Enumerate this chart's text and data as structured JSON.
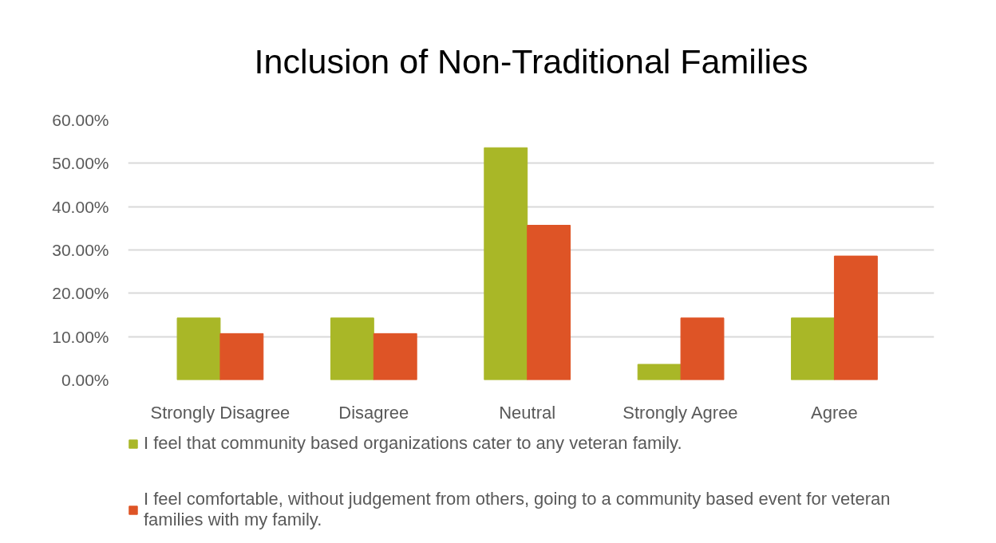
{
  "chart_data": {
    "type": "bar",
    "title": "Inclusion of Non-Traditional Families",
    "categories": [
      "Strongly Disagree",
      "Disagree",
      "Neutral",
      "Strongly Agree",
      "Agree"
    ],
    "series": [
      {
        "name": "I feel that community based organizations cater to any veteran family.",
        "color": "#a9b727",
        "values": [
          14.3,
          14.3,
          53.6,
          3.6,
          14.3
        ]
      },
      {
        "name": "I feel comfortable, without judgement from others, going to a community based event for veteran families with my family.",
        "color": "#de5426",
        "values": [
          10.7,
          10.7,
          35.7,
          14.3,
          28.6
        ]
      }
    ],
    "ylim": [
      0,
      60
    ],
    "yticks": [
      {
        "value": 0,
        "label": "0.00%"
      },
      {
        "value": 10,
        "label": "10.00%"
      },
      {
        "value": 20,
        "label": "20.00%"
      },
      {
        "value": 30,
        "label": "30.00%"
      },
      {
        "value": 40,
        "label": "40.00%"
      },
      {
        "value": 50,
        "label": "50.00%"
      },
      {
        "value": 60,
        "label": "60.00%"
      }
    ],
    "grid": "y",
    "legend": "bottom"
  }
}
